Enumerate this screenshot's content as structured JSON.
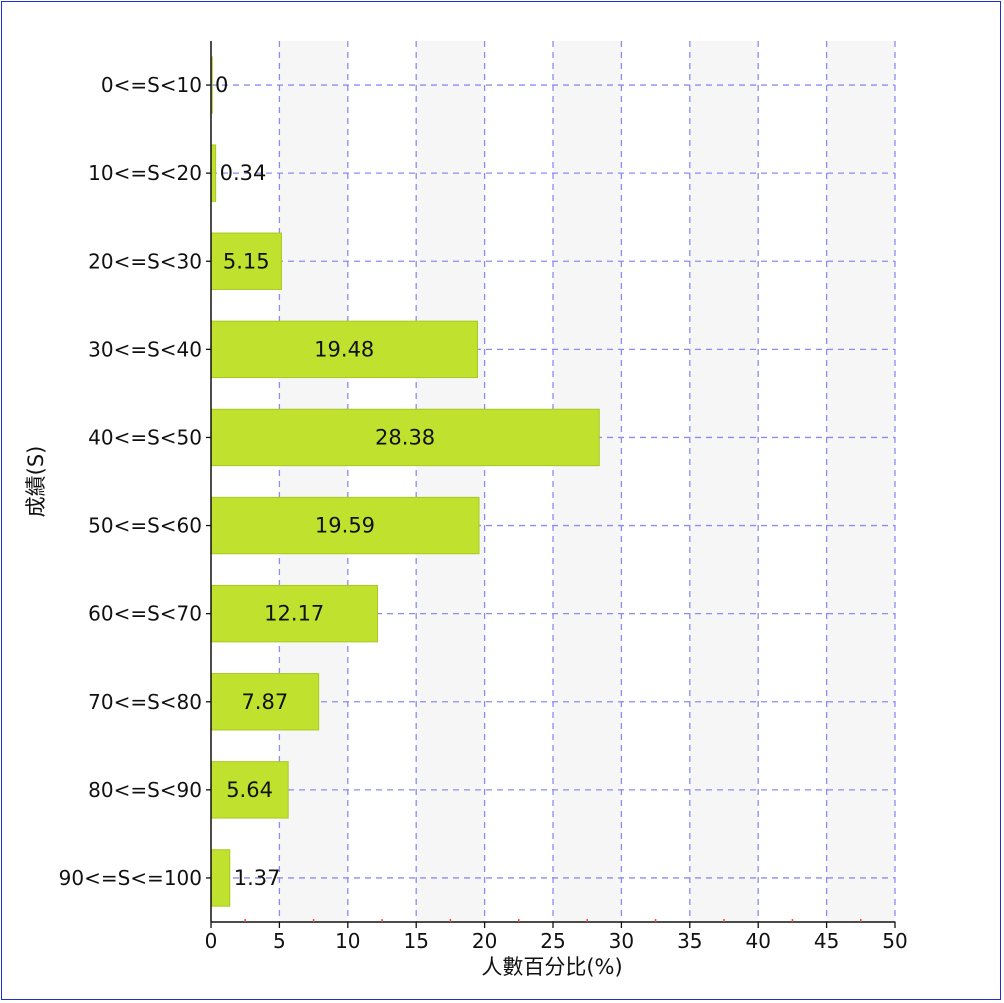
{
  "chart_data": {
    "type": "bar",
    "orientation": "horizontal",
    "categories": [
      "0<=S<10",
      "10<=S<20",
      "20<=S<30",
      "30<=S<40",
      "40<=S<50",
      "50<=S<60",
      "60<=S<70",
      "70<=S<80",
      "80<=S<90",
      "90<=S<=100"
    ],
    "values": [
      0,
      0.34,
      5.15,
      19.48,
      28.38,
      19.59,
      12.17,
      7.87,
      5.64,
      1.37
    ],
    "value_labels": [
      "0",
      "0.34",
      "5.15",
      "19.48",
      "28.38",
      "19.59",
      "12.17",
      "7.87",
      "5.64",
      "1.37"
    ],
    "xlabel": "人數百分比(%)",
    "ylabel": "成績(S)",
    "xlim": [
      0,
      50
    ],
    "xticks": [
      0,
      5,
      10,
      15,
      20,
      25,
      30,
      35,
      40,
      45,
      50
    ],
    "xtick_labels": [
      "0",
      "5",
      "10",
      "15",
      "20",
      "25",
      "30",
      "35",
      "40",
      "45",
      "50"
    ],
    "grid": true,
    "colors": {
      "bar": "#c0e22f",
      "bar_edge": "#a8c820",
      "grid": "#8c8cf0",
      "band": "#f6f6f6",
      "frame": "#1f2fd6",
      "minor_tick": "#e05050"
    }
  }
}
